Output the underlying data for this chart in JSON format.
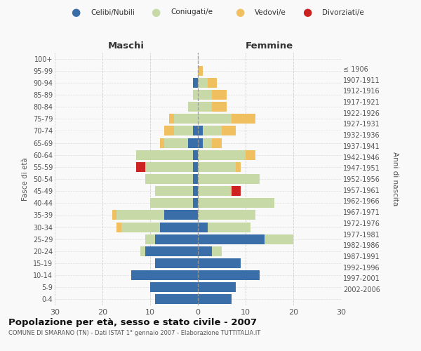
{
  "age_groups": [
    "0-4",
    "5-9",
    "10-14",
    "15-19",
    "20-24",
    "25-29",
    "30-34",
    "35-39",
    "40-44",
    "45-49",
    "50-54",
    "55-59",
    "60-64",
    "65-69",
    "70-74",
    "75-79",
    "80-84",
    "85-89",
    "90-94",
    "95-99",
    "100+"
  ],
  "birth_years": [
    "2002-2006",
    "1997-2001",
    "1992-1996",
    "1987-1991",
    "1982-1986",
    "1977-1981",
    "1972-1976",
    "1967-1971",
    "1962-1966",
    "1957-1961",
    "1952-1956",
    "1947-1951",
    "1942-1946",
    "1937-1941",
    "1932-1936",
    "1927-1931",
    "1922-1926",
    "1917-1921",
    "1912-1916",
    "1907-1911",
    "≤ 1906"
  ],
  "males": {
    "celibi": [
      9,
      10,
      14,
      9,
      11,
      9,
      8,
      7,
      1,
      1,
      1,
      1,
      1,
      2,
      1,
      0,
      0,
      0,
      1,
      0,
      0
    ],
    "coniugati": [
      0,
      0,
      0,
      0,
      1,
      2,
      8,
      10,
      9,
      8,
      10,
      10,
      12,
      5,
      4,
      5,
      2,
      1,
      0,
      0,
      0
    ],
    "vedovi": [
      0,
      0,
      0,
      0,
      0,
      0,
      1,
      1,
      0,
      0,
      0,
      0,
      0,
      1,
      2,
      1,
      0,
      0,
      0,
      0,
      0
    ],
    "divorziati": [
      0,
      0,
      0,
      0,
      0,
      0,
      0,
      0,
      0,
      0,
      0,
      2,
      0,
      0,
      0,
      0,
      0,
      0,
      0,
      0,
      0
    ]
  },
  "females": {
    "nubili": [
      7,
      8,
      13,
      9,
      3,
      14,
      2,
      0,
      0,
      0,
      0,
      0,
      0,
      1,
      1,
      0,
      0,
      0,
      0,
      0,
      0
    ],
    "coniugate": [
      0,
      0,
      0,
      0,
      2,
      6,
      9,
      12,
      16,
      7,
      13,
      8,
      10,
      2,
      4,
      7,
      3,
      3,
      2,
      0,
      0
    ],
    "vedove": [
      0,
      0,
      0,
      0,
      0,
      0,
      0,
      0,
      0,
      0,
      0,
      1,
      2,
      2,
      3,
      5,
      3,
      3,
      2,
      1,
      0
    ],
    "divorziate": [
      0,
      0,
      0,
      0,
      0,
      0,
      0,
      0,
      0,
      2,
      0,
      0,
      0,
      0,
      0,
      0,
      0,
      0,
      0,
      0,
      0
    ]
  },
  "colors": {
    "celibi": "#3a6ea8",
    "coniugati": "#c8d9a8",
    "vedovi": "#f0c060",
    "divorziati": "#cc2222"
  },
  "title": "Popolazione per età, sesso e stato civile - 2007",
  "subtitle": "COMUNE DI SMARANO (TN) - Dati ISTAT 1° gennaio 2007 - Elaborazione TUTTITALIA.IT",
  "xlabel_left": "Maschi",
  "xlabel_right": "Femmine",
  "ylabel_left": "Fasce di età",
  "ylabel_right": "Anni di nascita",
  "xlim": 30,
  "legend_labels": [
    "Celibi/Nubili",
    "Coniugati/e",
    "Vedovi/e",
    "Divorziati/e"
  ],
  "bg_color": "#f9f9f9",
  "grid_color": "#cccccc"
}
